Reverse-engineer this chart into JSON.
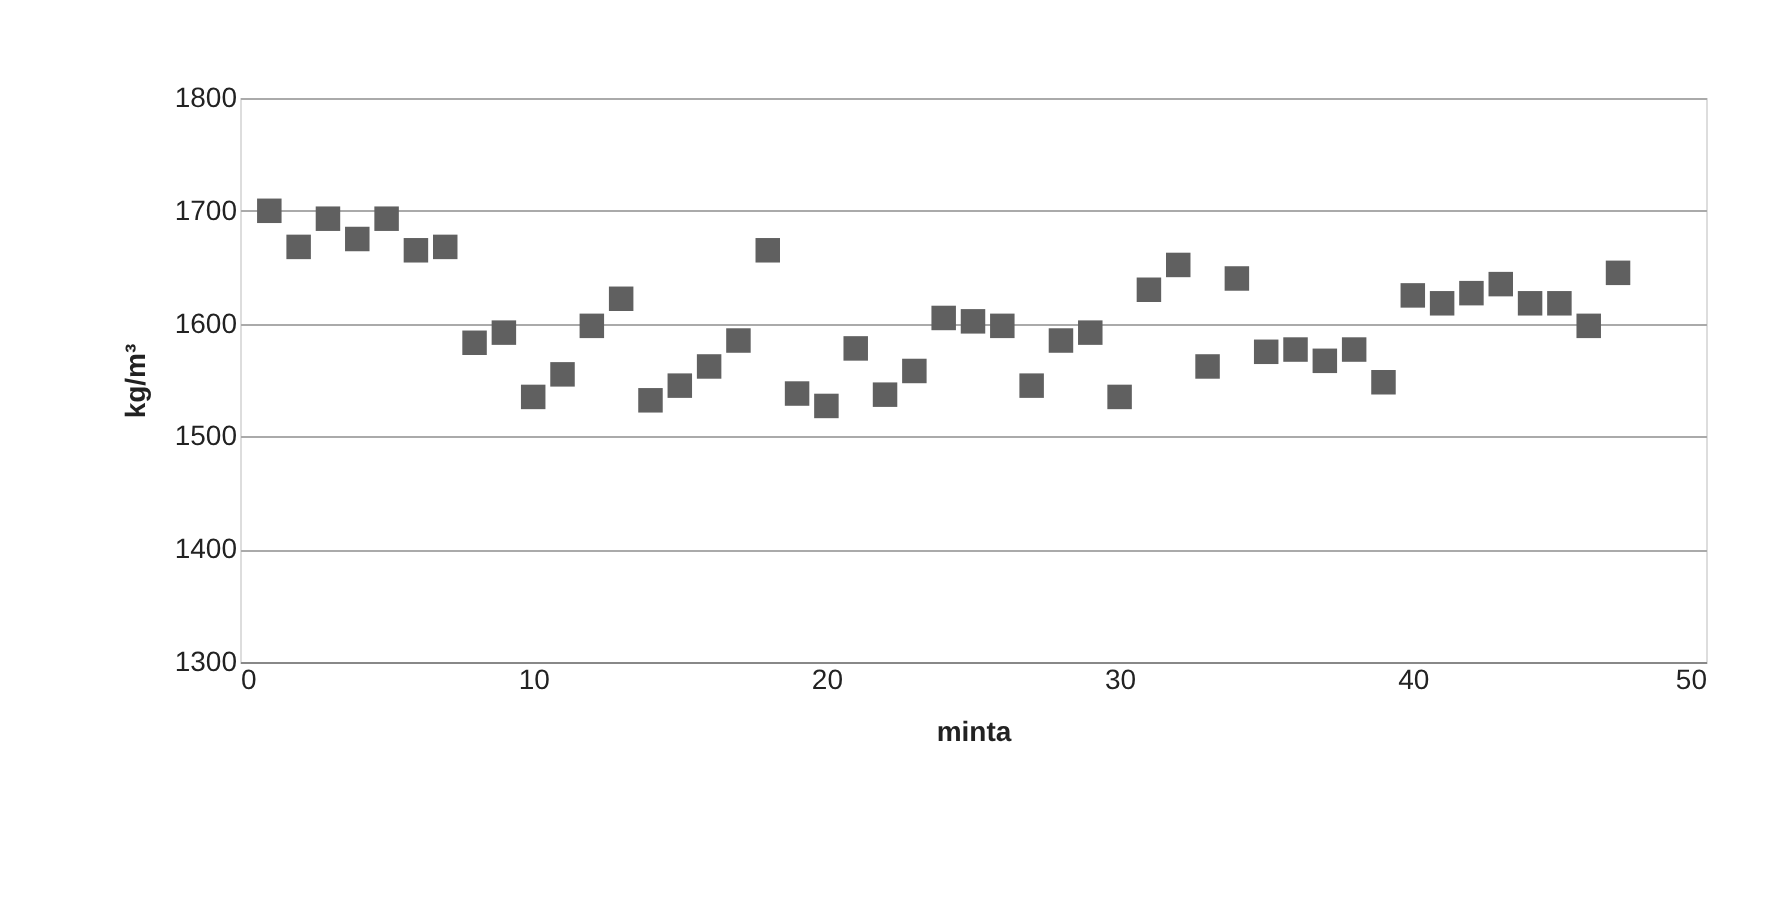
{
  "chart_data": {
    "type": "scatter",
    "xlabel": "minta",
    "ylabel": "kg/m³",
    "x": [
      1,
      2,
      3,
      4,
      5,
      6,
      7,
      8,
      9,
      10,
      11,
      12,
      13,
      14,
      15,
      16,
      17,
      18,
      19,
      20,
      21,
      22,
      23,
      24,
      25,
      26,
      27,
      28,
      29,
      30,
      31,
      32,
      33,
      34,
      35,
      36,
      37,
      38,
      39,
      40,
      41,
      42,
      43,
      44,
      45,
      46,
      47
    ],
    "series": [
      {
        "color": "#606060",
        "values": [
          1700,
          1668,
          1693,
          1675,
          1693,
          1665,
          1668,
          1583,
          1592,
          1535,
          1555,
          1598,
          1622,
          1532,
          1545,
          1562,
          1585,
          1665,
          1538,
          1527,
          1578,
          1537,
          1558,
          1605,
          1602,
          1598,
          1545,
          1585,
          1592,
          1535,
          1630,
          1652,
          1562,
          1640,
          1575,
          1577,
          1567,
          1577,
          1548,
          1625,
          1618,
          1627,
          1635,
          1618,
          1618,
          1598,
          1645
        ]
      }
    ],
    "xlim": [
      0,
      50
    ],
    "xticks": [
      0,
      10,
      20,
      30,
      40,
      50
    ],
    "ylim": [
      1300,
      1800
    ],
    "yticks": [
      1300,
      1400,
      1500,
      1600,
      1700,
      1800
    ],
    "grid": "y",
    "marker": "square"
  }
}
